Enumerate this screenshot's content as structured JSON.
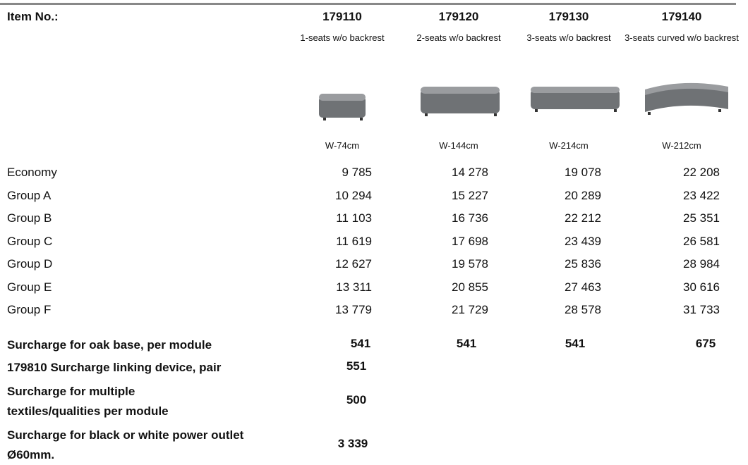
{
  "header": {
    "label": "Item No.:",
    "columns": [
      {
        "item": "179110",
        "description": "1-seats w/o backrest",
        "width": "W-74cm"
      },
      {
        "item": "179120",
        "description": "2-seats w/o backrest",
        "width": "W-144cm"
      },
      {
        "item": "179130",
        "description": "3-seats w/o backrest",
        "width": "W-214cm"
      },
      {
        "item": "179140",
        "description": "3-seats curved w/o backrest",
        "width": "W-212cm"
      }
    ]
  },
  "table": {
    "rows": [
      {
        "label": "Economy",
        "values": [
          "9 785",
          "14 278",
          "19 078",
          "22 208"
        ]
      },
      {
        "label": "Group A",
        "values": [
          "10 294",
          "15 227",
          "20 289",
          "23 422"
        ]
      },
      {
        "label": "Group B",
        "values": [
          "11 103",
          "16 736",
          "22 212",
          "25 351"
        ]
      },
      {
        "label": "Group C",
        "values": [
          "11 619",
          "17 698",
          "23 439",
          "26 581"
        ]
      },
      {
        "label": "Group D",
        "values": [
          "12 627",
          "19 578",
          "25 836",
          "28 984"
        ]
      },
      {
        "label": "Group E",
        "values": [
          "13 311",
          "20 855",
          "27 463",
          "30 616"
        ]
      },
      {
        "label": "Group F",
        "values": [
          "13 779",
          "21 729",
          "28 578",
          "31 733"
        ]
      }
    ]
  },
  "surcharges": [
    {
      "label": "Surcharge for oak base, per module",
      "values": [
        "541",
        "541",
        "541",
        "675"
      ]
    },
    {
      "label": "179810 Surcharge linking device, pair",
      "values": [
        "551"
      ]
    },
    {
      "label": "Surcharge for multiple textiles/qualities per module",
      "values": [
        "500"
      ]
    },
    {
      "label": "Surcharge for black or white power outlet Ø60mm.",
      "values": [
        "3 339"
      ]
    }
  ]
}
